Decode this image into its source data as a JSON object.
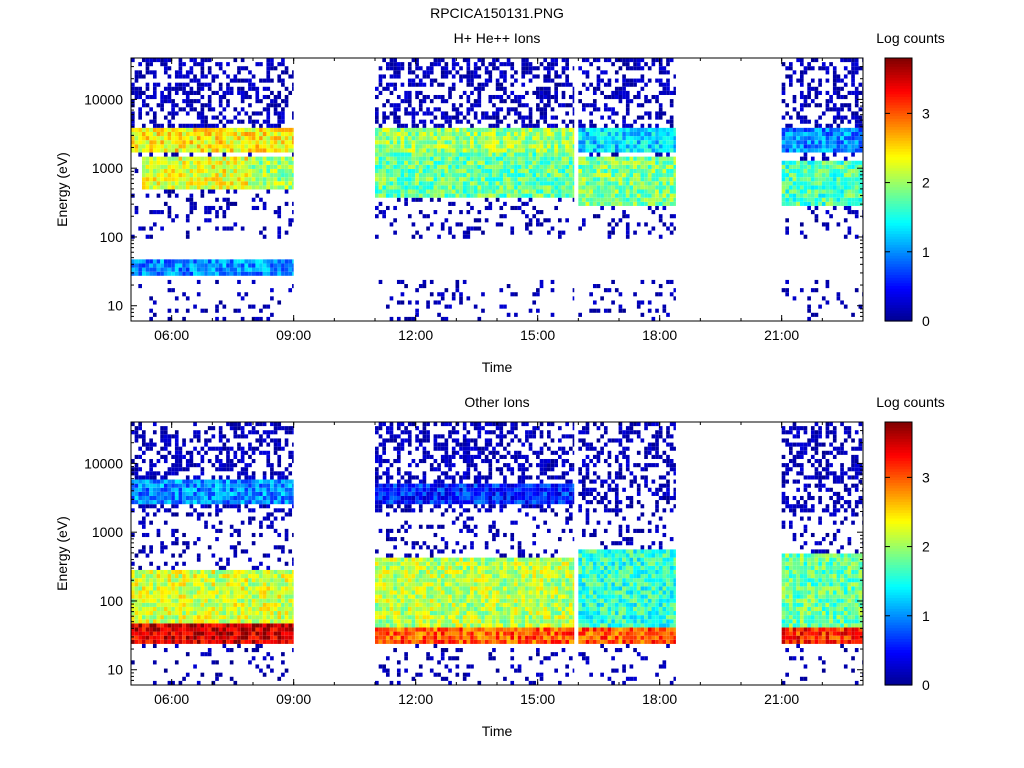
{
  "figure_title": "RPCICA150131.PNG",
  "colors": {
    "colormap": [
      "#00008f",
      "#0000ff",
      "#0080ff",
      "#00ffff",
      "#80ff80",
      "#ffff00",
      "#ff8000",
      "#ff0000",
      "#800000"
    ]
  },
  "chart_data": [
    {
      "type": "heatmap",
      "title": "H+ He++ Ions",
      "xlabel": "Time",
      "ylabel": "Energy (eV)",
      "x_ticks": [
        "06:00",
        "09:00",
        "12:00",
        "15:00",
        "18:00",
        "21:00"
      ],
      "x_tick_hours": [
        6,
        9,
        12,
        15,
        18,
        21
      ],
      "xlim_hours": [
        5.0,
        23.0
      ],
      "y_scale": "log",
      "y_ticks": [
        10,
        100,
        1000,
        10000
      ],
      "y_tick_labels": [
        "10",
        "100",
        "1000",
        "10000"
      ],
      "ylim": [
        6,
        40000
      ],
      "colorbar": {
        "label": "Log counts",
        "range": [
          0,
          3.8
        ],
        "ticks": [
          0,
          1,
          2,
          3
        ],
        "tick_labels": [
          "0",
          "1",
          "2",
          "3"
        ]
      },
      "data_intervals_hours": [
        [
          5.0,
          9.0
        ],
        [
          11.0,
          15.9
        ],
        [
          16.0,
          18.4
        ],
        [
          21.0,
          23.0
        ]
      ],
      "features": [
        {
          "t": [
            5.0,
            9.0
          ],
          "e": [
            1800,
            4000
          ],
          "level": 2.4
        },
        {
          "t": [
            5.2,
            7.8
          ],
          "e": [
            500,
            1500
          ],
          "level": 2.3
        },
        {
          "t": [
            7.8,
            9.0
          ],
          "e": [
            500,
            1500
          ],
          "level": 2.0
        },
        {
          "t": [
            5.0,
            9.0
          ],
          "e": [
            28,
            45
          ],
          "level": 1.0
        },
        {
          "t": [
            11.0,
            15.9
          ],
          "e": [
            1800,
            4000
          ],
          "level": 2.0
        },
        {
          "t": [
            11.0,
            15.9
          ],
          "e": [
            350,
            1800
          ],
          "level": 1.8
        },
        {
          "t": [
            16.0,
            18.4
          ],
          "e": [
            300,
            1500
          ],
          "level": 1.9
        },
        {
          "t": [
            16.0,
            18.4
          ],
          "e": [
            1800,
            4000
          ],
          "level": 1.3
        },
        {
          "t": [
            21.0,
            23.0
          ],
          "e": [
            300,
            1200
          ],
          "level": 1.7
        },
        {
          "t": [
            21.0,
            23.0
          ],
          "e": [
            1800,
            4000
          ],
          "level": 1.0
        }
      ]
    },
    {
      "type": "heatmap",
      "title": "Other Ions",
      "xlabel": "Time",
      "ylabel": "Energy (eV)",
      "x_ticks": [
        "06:00",
        "09:00",
        "12:00",
        "15:00",
        "18:00",
        "21:00"
      ],
      "x_tick_hours": [
        6,
        9,
        12,
        15,
        18,
        21
      ],
      "xlim_hours": [
        5.0,
        23.0
      ],
      "y_scale": "log",
      "y_ticks": [
        10,
        100,
        1000,
        10000
      ],
      "y_tick_labels": [
        "10",
        "100",
        "1000",
        "10000"
      ],
      "ylim": [
        6,
        40000
      ],
      "colorbar": {
        "label": "Log counts",
        "range": [
          0,
          3.8
        ],
        "ticks": [
          0,
          1,
          2,
          3
        ],
        "tick_labels": [
          "0",
          "1",
          "2",
          "3"
        ]
      },
      "data_intervals_hours": [
        [
          5.0,
          9.0
        ],
        [
          11.0,
          15.9
        ],
        [
          16.0,
          18.4
        ],
        [
          21.0,
          23.0
        ]
      ],
      "features": [
        {
          "t": [
            5.0,
            9.0
          ],
          "e": [
            25,
            45
          ],
          "level": 3.5
        },
        {
          "t": [
            5.0,
            9.0
          ],
          "e": [
            45,
            300
          ],
          "level": 2.2
        },
        {
          "t": [
            5.0,
            9.0
          ],
          "e": [
            2500,
            6000
          ],
          "level": 1.0
        },
        {
          "t": [
            11.0,
            15.9
          ],
          "e": [
            25,
            40
          ],
          "level": 3.0
        },
        {
          "t": [
            11.0,
            15.9
          ],
          "e": [
            40,
            400
          ],
          "level": 2.1
        },
        {
          "t": [
            11.0,
            15.9
          ],
          "e": [
            2500,
            5000
          ],
          "level": 0.6
        },
        {
          "t": [
            16.0,
            18.4
          ],
          "e": [
            25,
            40
          ],
          "level": 3.0
        },
        {
          "t": [
            16.0,
            18.4
          ],
          "e": [
            40,
            600
          ],
          "level": 1.6
        },
        {
          "t": [
            21.0,
            23.0
          ],
          "e": [
            25,
            40
          ],
          "level": 3.2
        },
        {
          "t": [
            21.0,
            23.0
          ],
          "e": [
            40,
            500
          ],
          "level": 1.8
        }
      ]
    }
  ]
}
